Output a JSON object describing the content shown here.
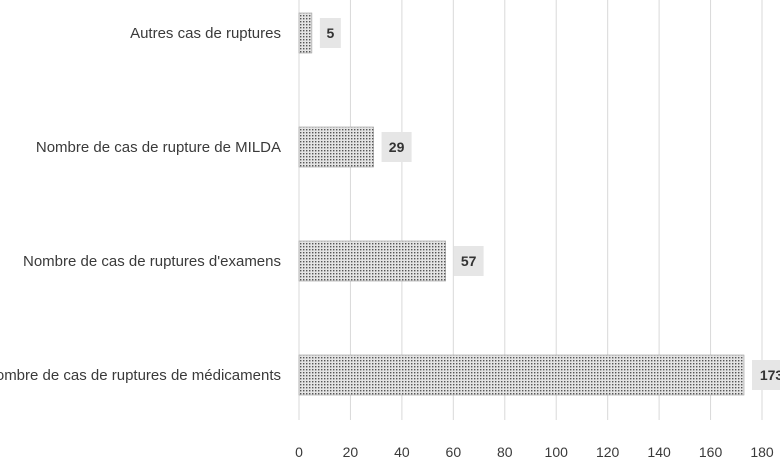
{
  "chart_data": {
    "type": "bar",
    "orientation": "horizontal",
    "title": "",
    "xlabel": "",
    "ylabel": "",
    "categories": [
      "Autres cas de ruptures",
      "Nombre de cas de rupture de MILDA",
      "Nombre de cas de ruptures d'examens",
      "Nombre de cas de ruptures de médicaments"
    ],
    "values": [
      5,
      29,
      57,
      173
    ],
    "data_labels": [
      "5",
      "29",
      "57",
      "173"
    ],
    "xlim": [
      0,
      180
    ],
    "xticks": [
      0,
      20,
      40,
      60,
      80,
      100,
      120,
      140,
      160,
      180
    ],
    "xtick_labels": [
      "0",
      "20",
      "40",
      "60",
      "80",
      "100",
      "120",
      "140",
      "160",
      "180"
    ],
    "grid": "vertical",
    "legend": "none",
    "colors": {
      "bar_fill_pattern": "dotted",
      "bar_dot": "#555555",
      "bar_bg": "#e4e4e4",
      "gridline": "#d9d9d9",
      "label_bg": "#e6e6e6",
      "text": "#3a3a3a"
    }
  }
}
